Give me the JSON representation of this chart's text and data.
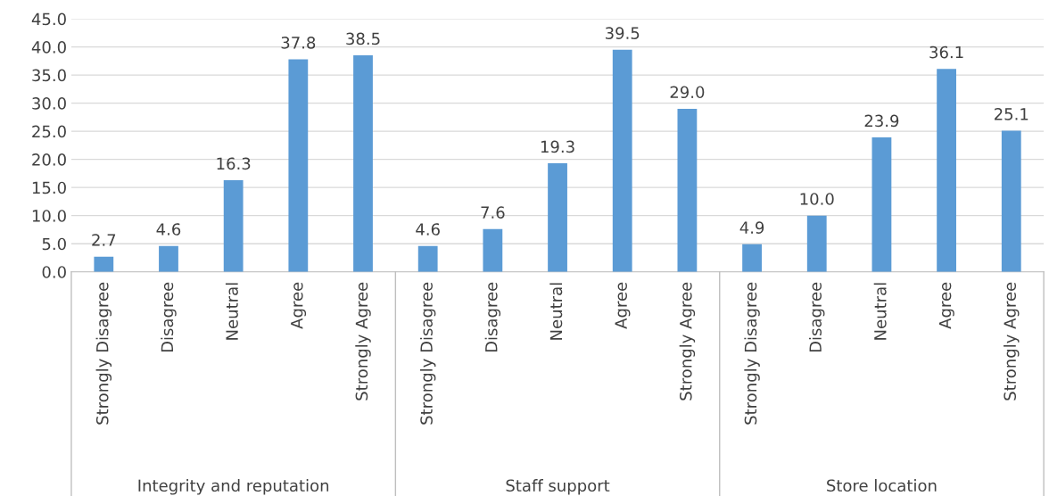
{
  "chart_data": {
    "type": "bar",
    "categories": [
      "Strongly Disagree",
      "Disagree",
      "Neutral",
      "Agree",
      "Strongly Agree",
      "Strongly Disagree",
      "Disagree",
      "Neutral",
      "Agree",
      "Strongly Agree",
      "Strongly Disagree",
      "Disagree",
      "Neutral",
      "Agree",
      "Strongly Agree"
    ],
    "values": [
      2.7,
      4.6,
      16.3,
      37.8,
      38.5,
      4.6,
      7.6,
      19.3,
      39.5,
      29.0,
      4.9,
      10.0,
      23.9,
      36.1,
      25.1
    ],
    "value_labels": [
      "2.7",
      "4.6",
      "16.3",
      "37.8",
      "38.5",
      "4.6",
      "7.6",
      "19.3",
      "39.5",
      "29.0",
      "4.9",
      "10.0",
      "23.9",
      "36.1",
      "25.1"
    ],
    "color": "#5b9bd5",
    "ylim": [
      0,
      45
    ],
    "yticks": [
      {
        "value": 0,
        "label": "0.0"
      },
      {
        "value": 5,
        "label": "5.0"
      },
      {
        "value": 10,
        "label": "10.0"
      },
      {
        "value": 15,
        "label": "15.0"
      },
      {
        "value": 20,
        "label": "20.0"
      },
      {
        "value": 25,
        "label": "25.0"
      },
      {
        "value": 30,
        "label": "30.0"
      },
      {
        "value": 35,
        "label": "35.0"
      },
      {
        "value": 40,
        "label": "40.0"
      },
      {
        "value": 45,
        "label": "45.0"
      }
    ],
    "grid": "y",
    "annotations": [
      "Integrity and reputation",
      "Staff support",
      "Store location"
    ]
  }
}
